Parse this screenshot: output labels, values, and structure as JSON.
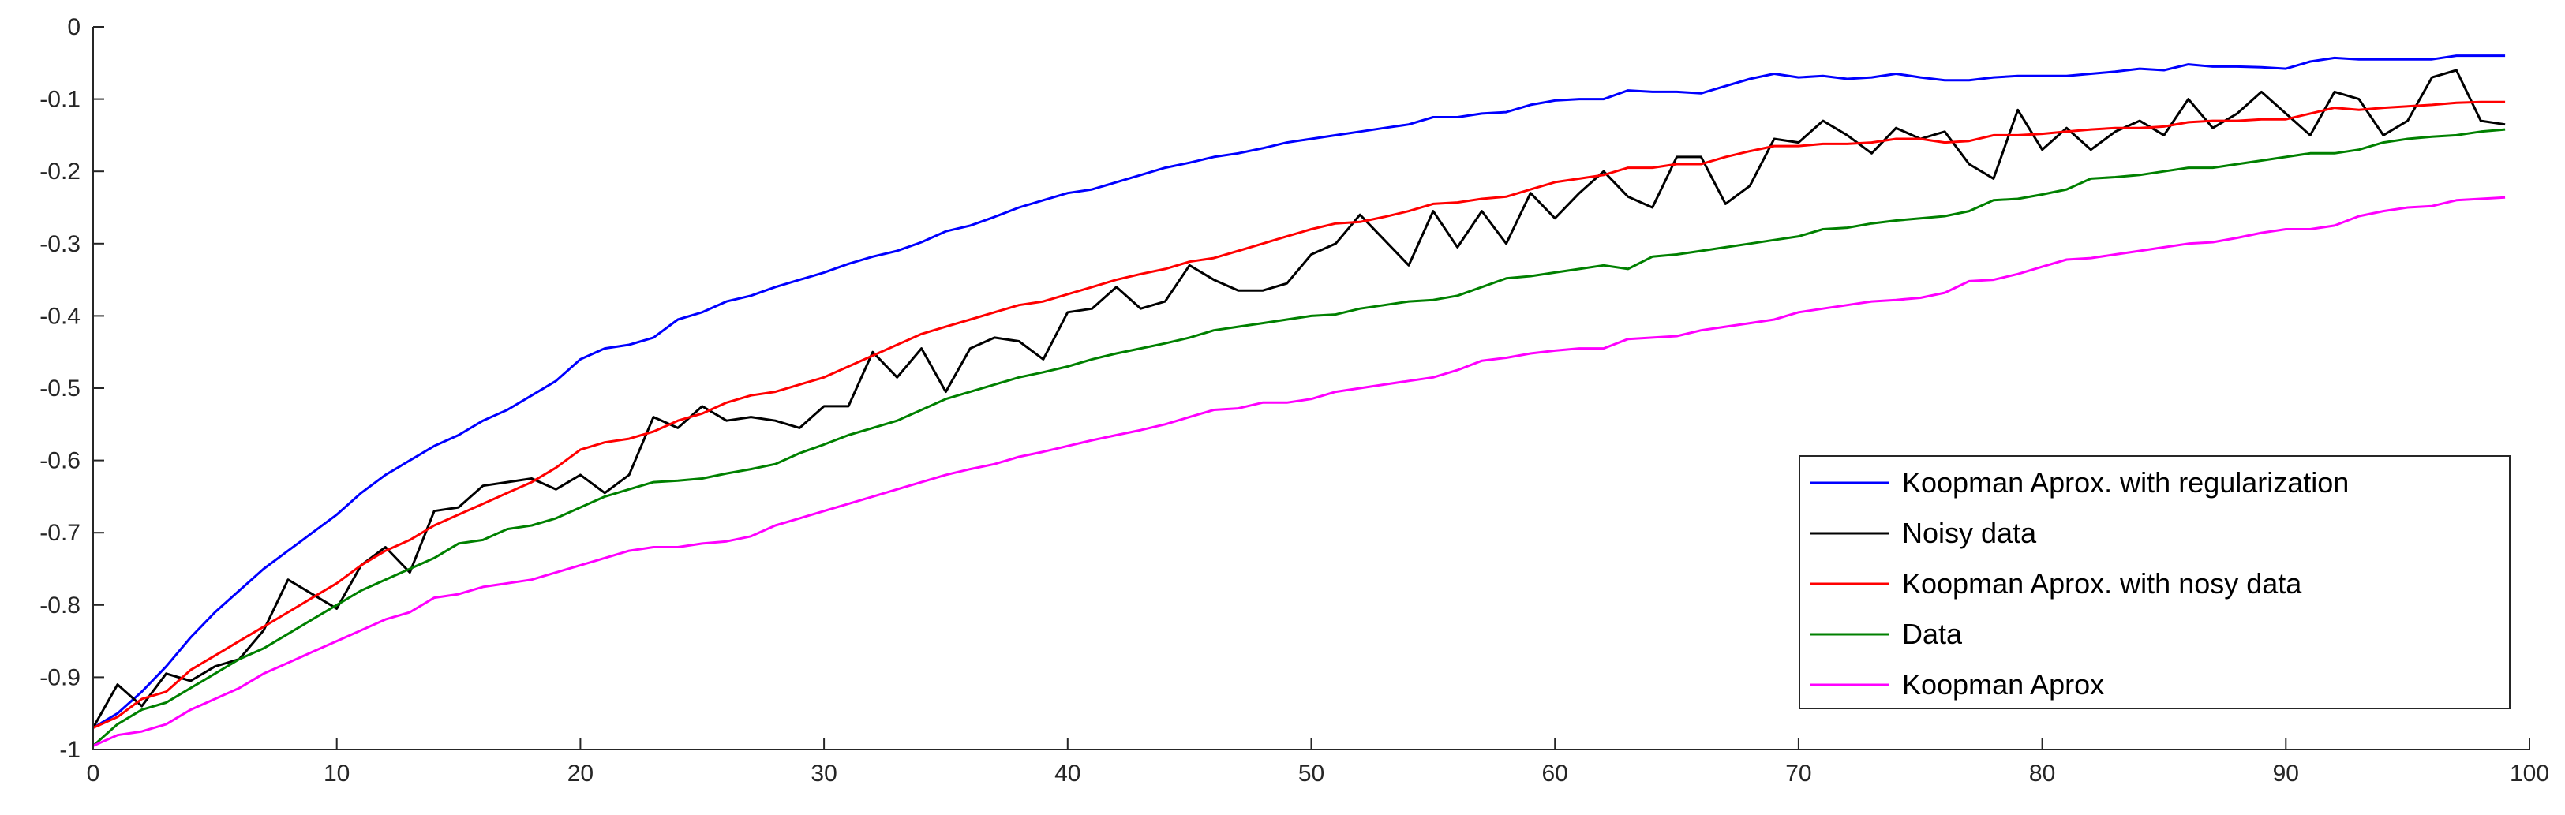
{
  "chart_data": {
    "type": "line",
    "title": "",
    "xlabel": "",
    "ylabel": "",
    "xlim": [
      0,
      100
    ],
    "ylim": [
      -1,
      0
    ],
    "x_ticks": [
      0,
      10,
      20,
      30,
      40,
      50,
      60,
      70,
      80,
      90,
      100
    ],
    "y_ticks": [
      0,
      -0.1,
      -0.2,
      -0.3,
      -0.4,
      -0.5,
      -0.6,
      -0.7,
      -0.8,
      -0.9,
      -1
    ],
    "x_tick_labels": [
      "0",
      "10",
      "20",
      "30",
      "40",
      "50",
      "60",
      "70",
      "80",
      "90",
      "100"
    ],
    "y_tick_labels": [
      "0",
      "-0.1",
      "-0.2",
      "-0.3",
      "-0.4",
      "-0.5",
      "-0.6",
      "-0.7",
      "-0.8",
      "-0.9",
      "-1"
    ],
    "grid": false,
    "legend_position": "bottom-right",
    "x": [
      0,
      1,
      2,
      3,
      4,
      5,
      6,
      7,
      8,
      9,
      10,
      11,
      12,
      13,
      14,
      15,
      16,
      17,
      18,
      19,
      20,
      21,
      22,
      23,
      24,
      25,
      26,
      27,
      28,
      29,
      30,
      31,
      32,
      33,
      34,
      35,
      36,
      37,
      38,
      39,
      40,
      41,
      42,
      43,
      44,
      45,
      46,
      47,
      48,
      49,
      50,
      51,
      52,
      53,
      54,
      55,
      56,
      57,
      58,
      59,
      60,
      61,
      62,
      63,
      64,
      65,
      66,
      67,
      68,
      69,
      70,
      71,
      72,
      73,
      74,
      75,
      76,
      77,
      78,
      79,
      80,
      81,
      82,
      83,
      84,
      85,
      86,
      87,
      88,
      89,
      90,
      91,
      92,
      93,
      94,
      95,
      96,
      97,
      98,
      99
    ],
    "series": [
      {
        "name": "Koopman Aprox. with regularization",
        "color": "#0000ff",
        "values": [
          -0.97,
          -0.95,
          -0.92,
          -0.885,
          -0.845,
          -0.81,
          -0.78,
          -0.75,
          -0.725,
          -0.7,
          -0.675,
          -0.645,
          -0.62,
          -0.6,
          -0.58,
          -0.565,
          -0.545,
          -0.53,
          -0.51,
          -0.49,
          -0.46,
          -0.445,
          -0.44,
          -0.43,
          -0.405,
          -0.395,
          -0.38,
          -0.372,
          -0.36,
          -0.35,
          -0.34,
          -0.328,
          -0.318,
          -0.31,
          -0.298,
          -0.283,
          -0.275,
          -0.263,
          -0.25,
          -0.24,
          -0.23,
          -0.225,
          -0.215,
          -0.205,
          -0.195,
          -0.188,
          -0.18,
          -0.175,
          -0.168,
          -0.16,
          -0.155,
          -0.15,
          -0.145,
          -0.14,
          -0.135,
          -0.125,
          -0.125,
          -0.12,
          -0.118,
          -0.108,
          -0.102,
          -0.1,
          -0.1,
          -0.088,
          -0.09,
          -0.09,
          -0.092,
          -0.082,
          -0.072,
          -0.065,
          -0.07,
          -0.068,
          -0.072,
          -0.07,
          -0.065,
          -0.07,
          -0.074,
          -0.074,
          -0.07,
          -0.068,
          -0.068,
          -0.068,
          -0.065,
          -0.062,
          -0.058,
          -0.06,
          -0.052,
          -0.055,
          -0.055,
          -0.056,
          -0.058,
          -0.048,
          -0.043,
          -0.045,
          -0.045,
          -0.045,
          -0.045,
          -0.04,
          -0.04,
          -0.04
        ]
      },
      {
        "name": "Noisy data",
        "color": "#000000",
        "values": [
          -0.97,
          -0.91,
          -0.94,
          -0.895,
          -0.905,
          -0.885,
          -0.875,
          -0.835,
          -0.765,
          -0.785,
          -0.805,
          -0.745,
          -0.72,
          -0.755,
          -0.67,
          -0.665,
          -0.635,
          -0.63,
          -0.625,
          -0.64,
          -0.62,
          -0.645,
          -0.62,
          -0.54,
          -0.555,
          -0.525,
          -0.545,
          -0.54,
          -0.545,
          -0.555,
          -0.525,
          -0.525,
          -0.45,
          -0.485,
          -0.445,
          -0.505,
          -0.445,
          -0.43,
          -0.435,
          -0.46,
          -0.395,
          -0.39,
          -0.36,
          -0.39,
          -0.38,
          -0.33,
          -0.35,
          -0.365,
          -0.365,
          -0.355,
          -0.315,
          -0.3,
          -0.26,
          -0.295,
          -0.33,
          -0.255,
          -0.305,
          -0.255,
          -0.3,
          -0.23,
          -0.265,
          -0.23,
          -0.2,
          -0.235,
          -0.25,
          -0.18,
          -0.18,
          -0.245,
          -0.22,
          -0.155,
          -0.16,
          -0.13,
          -0.15,
          -0.175,
          -0.14,
          -0.155,
          -0.145,
          -0.19,
          -0.21,
          -0.115,
          -0.17,
          -0.14,
          -0.17,
          -0.145,
          -0.13,
          -0.15,
          -0.1,
          -0.14,
          -0.12,
          -0.09,
          -0.12,
          -0.15,
          -0.09,
          -0.1,
          -0.15,
          -0.13,
          -0.07,
          -0.06,
          -0.13,
          -0.135
        ]
      },
      {
        "name": "Koopman Aprox. with nosy data",
        "color": "#ff0000",
        "values": [
          -0.97,
          -0.955,
          -0.93,
          -0.92,
          -0.89,
          -0.87,
          -0.85,
          -0.83,
          -0.81,
          -0.79,
          -0.77,
          -0.745,
          -0.725,
          -0.71,
          -0.69,
          -0.675,
          -0.66,
          -0.645,
          -0.63,
          -0.61,
          -0.585,
          -0.575,
          -0.57,
          -0.56,
          -0.545,
          -0.535,
          -0.52,
          -0.51,
          -0.505,
          -0.495,
          -0.485,
          -0.47,
          -0.455,
          -0.44,
          -0.425,
          -0.415,
          -0.405,
          -0.395,
          -0.385,
          -0.38,
          -0.37,
          -0.36,
          -0.35,
          -0.342,
          -0.335,
          -0.325,
          -0.32,
          -0.31,
          -0.3,
          -0.29,
          -0.28,
          -0.272,
          -0.27,
          -0.263,
          -0.255,
          -0.245,
          -0.243,
          -0.238,
          -0.235,
          -0.225,
          -0.215,
          -0.21,
          -0.205,
          -0.195,
          -0.195,
          -0.19,
          -0.19,
          -0.18,
          -0.172,
          -0.165,
          -0.165,
          -0.162,
          -0.162,
          -0.16,
          -0.155,
          -0.155,
          -0.16,
          -0.158,
          -0.15,
          -0.15,
          -0.148,
          -0.145,
          -0.142,
          -0.14,
          -0.14,
          -0.138,
          -0.132,
          -0.13,
          -0.13,
          -0.128,
          -0.128,
          -0.12,
          -0.112,
          -0.115,
          -0.112,
          -0.11,
          -0.108,
          -0.105,
          -0.104,
          -0.104
        ]
      },
      {
        "name": "Data",
        "color": "#008000",
        "values": [
          -0.995,
          -0.965,
          -0.945,
          -0.935,
          -0.915,
          -0.895,
          -0.875,
          -0.86,
          -0.84,
          -0.82,
          -0.8,
          -0.78,
          -0.765,
          -0.75,
          -0.735,
          -0.715,
          -0.71,
          -0.695,
          -0.69,
          -0.68,
          -0.665,
          -0.65,
          -0.64,
          -0.63,
          -0.628,
          -0.625,
          -0.618,
          -0.612,
          -0.605,
          -0.59,
          -0.578,
          -0.565,
          -0.555,
          -0.545,
          -0.53,
          -0.515,
          -0.505,
          -0.495,
          -0.485,
          -0.478,
          -0.47,
          -0.46,
          -0.452,
          -0.445,
          -0.438,
          -0.43,
          -0.42,
          -0.415,
          -0.41,
          -0.405,
          -0.4,
          -0.398,
          -0.39,
          -0.385,
          -0.38,
          -0.378,
          -0.372,
          -0.36,
          -0.348,
          -0.345,
          -0.34,
          -0.335,
          -0.33,
          -0.335,
          -0.318,
          -0.315,
          -0.31,
          -0.305,
          -0.3,
          -0.295,
          -0.29,
          -0.28,
          -0.278,
          -0.272,
          -0.268,
          -0.265,
          -0.262,
          -0.255,
          -0.24,
          -0.238,
          -0.232,
          -0.225,
          -0.21,
          -0.208,
          -0.205,
          -0.2,
          -0.195,
          -0.195,
          -0.19,
          -0.185,
          -0.18,
          -0.175,
          -0.175,
          -0.17,
          -0.16,
          -0.155,
          -0.152,
          -0.15,
          -0.145,
          -0.142
        ]
      },
      {
        "name": "Koopman Aprox",
        "color": "#ff00ff",
        "values": [
          -0.995,
          -0.98,
          -0.975,
          -0.965,
          -0.945,
          -0.93,
          -0.915,
          -0.895,
          -0.88,
          -0.865,
          -0.85,
          -0.835,
          -0.82,
          -0.81,
          -0.79,
          -0.785,
          -0.775,
          -0.77,
          -0.765,
          -0.755,
          -0.745,
          -0.735,
          -0.725,
          -0.72,
          -0.72,
          -0.715,
          -0.712,
          -0.705,
          -0.69,
          -0.68,
          -0.67,
          -0.66,
          -0.65,
          -0.64,
          -0.63,
          -0.62,
          -0.612,
          -0.605,
          -0.595,
          -0.588,
          -0.58,
          -0.572,
          -0.565,
          -0.558,
          -0.55,
          -0.54,
          -0.53,
          -0.528,
          -0.52,
          -0.52,
          -0.515,
          -0.505,
          -0.5,
          -0.495,
          -0.49,
          -0.485,
          -0.475,
          -0.462,
          -0.458,
          -0.452,
          -0.448,
          -0.445,
          -0.445,
          -0.432,
          -0.43,
          -0.428,
          -0.42,
          -0.415,
          -0.41,
          -0.405,
          -0.395,
          -0.39,
          -0.385,
          -0.38,
          -0.378,
          -0.375,
          -0.368,
          -0.352,
          -0.35,
          -0.342,
          -0.332,
          -0.322,
          -0.32,
          -0.315,
          -0.31,
          -0.305,
          -0.3,
          -0.298,
          -0.292,
          -0.285,
          -0.28,
          -0.28,
          -0.275,
          -0.262,
          -0.255,
          -0.25,
          -0.248,
          -0.24,
          -0.238,
          -0.236
        ]
      }
    ]
  }
}
